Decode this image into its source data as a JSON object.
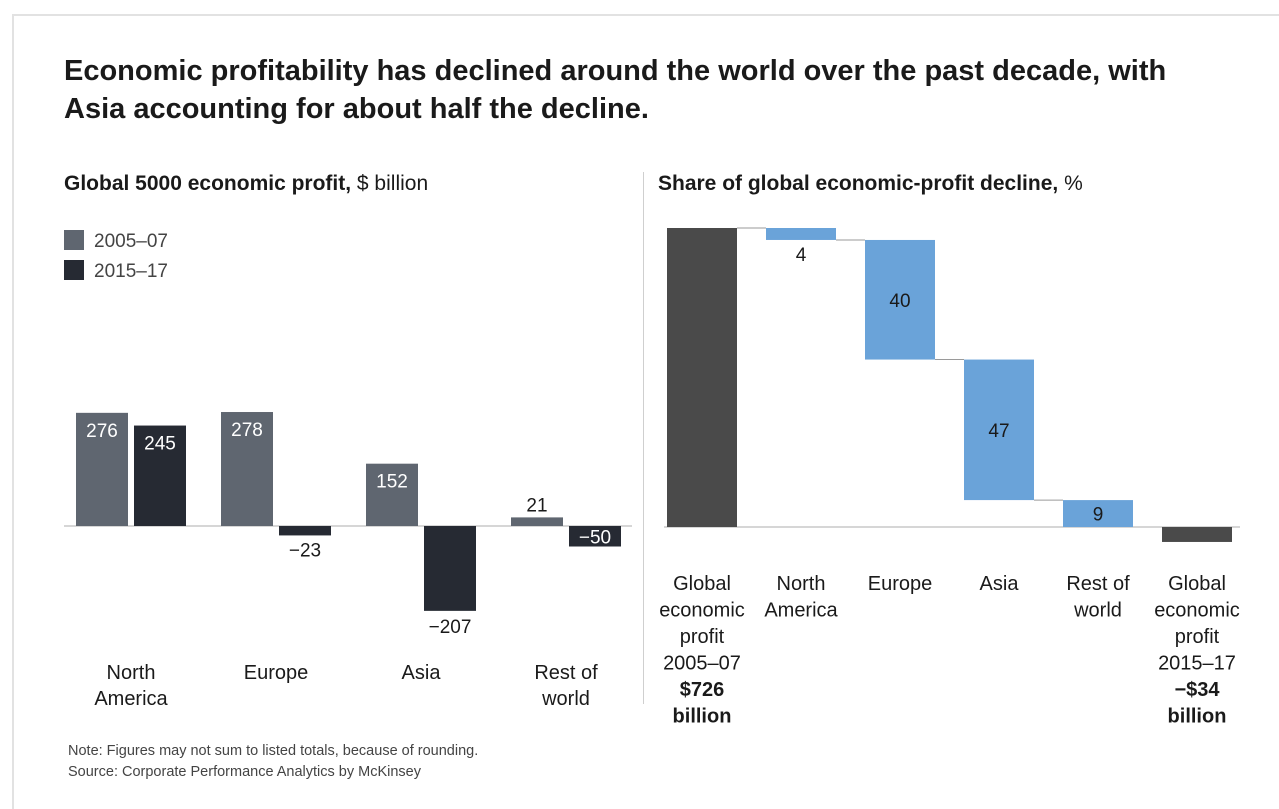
{
  "title": "Economic profitability has declined around the world over the past decade, with Asia accounting for about half the decline.",
  "left_subtitle": {
    "bold": "Global 5000 economic profit,",
    "unit": "$ billion"
  },
  "right_subtitle": {
    "bold": "Share of global economic-profit decline,",
    "unit": "%"
  },
  "note": "Note: Figures may not sum to listed totals, because of rounding.",
  "source": "Source: Corporate Performance Analytics by McKinsey",
  "colors": {
    "series_2005": "#5f6670",
    "series_2015": "#262a33",
    "decline": "#6aa3d9",
    "total": "#4a4a4a"
  },
  "chart_data": [
    {
      "type": "bar",
      "title": "Global 5000 economic profit, $ billion",
      "categories": [
        [
          "North",
          "America"
        ],
        [
          "Europe"
        ],
        [
          "Asia"
        ],
        [
          "Rest of",
          "world"
        ]
      ],
      "series": [
        {
          "name": "2005–07",
          "values": [
            276,
            278,
            152,
            21
          ],
          "labels": [
            "276",
            "278",
            "152",
            "21"
          ]
        },
        {
          "name": "2015–17",
          "values": [
            245,
            -23,
            -207,
            -50
          ],
          "labels": [
            "245",
            "−23",
            "−207",
            "−50"
          ]
        }
      ],
      "legend": "top-left",
      "grid": false
    },
    {
      "type": "bar",
      "subtype": "waterfall",
      "title": "Share of global economic-profit decline, %",
      "categories": [
        {
          "lines": [
            "Global",
            "economic",
            "profit",
            "2005–07"
          ],
          "bold_lines": [
            "$726",
            "billion"
          ],
          "kind": "total"
        },
        {
          "lines": [
            "North",
            "America"
          ],
          "bold_lines": [],
          "kind": "step"
        },
        {
          "lines": [
            "Europe"
          ],
          "bold_lines": [],
          "kind": "step"
        },
        {
          "lines": [
            "Asia"
          ],
          "bold_lines": [],
          "kind": "step"
        },
        {
          "lines": [
            "Rest of",
            "world"
          ],
          "bold_lines": [],
          "kind": "step"
        },
        {
          "lines": [
            "Global",
            "economic",
            "profit",
            "2015–17"
          ],
          "bold_lines": [
            "−$34",
            "billion"
          ],
          "kind": "total"
        }
      ],
      "values": [
        100,
        4,
        40,
        47,
        9,
        -5
      ],
      "labels": [
        "",
        "4",
        "40",
        "47",
        "9",
        ""
      ]
    }
  ]
}
